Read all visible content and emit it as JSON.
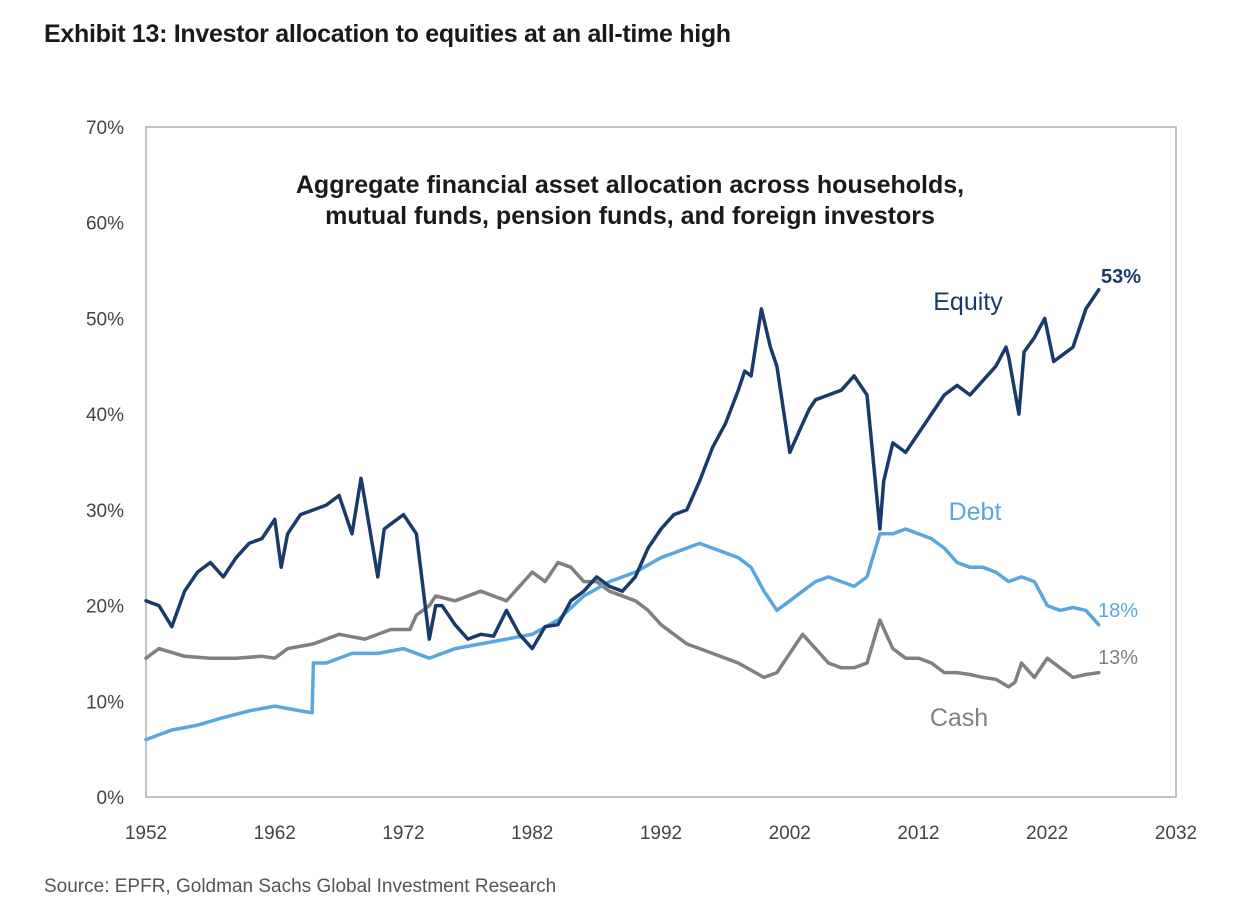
{
  "exhibit_title": "Exhibit 13: Investor allocation to equities at an all-time high",
  "source": "Source: EPFR, Goldman Sachs Global Investment Research",
  "colors": {
    "equity": "#1a3a6b",
    "debt": "#5aa7dd",
    "cash": "#808080",
    "axis": "#b0b0b0"
  },
  "chart_data": {
    "type": "line",
    "title": "Aggregate financial asset allocation across households, mutual funds, pension funds, and foreign investors",
    "title_lines": [
      "Aggregate financial asset allocation across households,",
      "mutual funds, pension funds, and foreign investors"
    ],
    "xlabel": "",
    "ylabel": "",
    "xlim": [
      1952,
      2032
    ],
    "ylim": [
      0,
      70
    ],
    "x_ticks": [
      1952,
      1962,
      1972,
      1982,
      1992,
      2002,
      2012,
      2022,
      2032
    ],
    "x_tick_labels": [
      "1952",
      "1962",
      "1972",
      "1982",
      "1992",
      "2002",
      "2012",
      "2022",
      "2032"
    ],
    "y_ticks": [
      0,
      10,
      20,
      30,
      40,
      50,
      60,
      70
    ],
    "y_tick_labels": [
      "0%",
      "10%",
      "20%",
      "30%",
      "40%",
      "50%",
      "60%",
      "70%"
    ],
    "grid": false,
    "series": [
      {
        "name": "Equity",
        "label": "Equity",
        "end_label": "53%",
        "color": "#1a3a6b",
        "x": [
          1952,
          1953,
          1954,
          1955,
          1956,
          1957,
          1958,
          1959,
          1960,
          1961,
          1962,
          1962.5,
          1963,
          1964,
          1965,
          1966,
          1967,
          1968,
          1968.7,
          1969,
          1970,
          1970.5,
          1971,
          1972,
          1973,
          1974,
          1974.5,
          1975,
          1976,
          1977,
          1978,
          1979,
          1980,
          1981,
          1982,
          1983,
          1984,
          1985,
          1986,
          1987,
          1988,
          1989,
          1990,
          1991,
          1992,
          1993,
          1994,
          1995,
          1996,
          1997,
          1998,
          1998.5,
          1999,
          1999.8,
          2000.5,
          2001,
          2002,
          2003,
          2003.5,
          2004,
          2005,
          2006,
          2007,
          2008,
          2009,
          2009.3,
          2010,
          2011,
          2012,
          2013,
          2014,
          2015,
          2016,
          2017,
          2018,
          2018.8,
          2019,
          2019.8,
          2020.2,
          2021,
          2021.8,
          2022.5,
          2023,
          2024,
          2025,
          2026
        ],
        "values": [
          20.5,
          20,
          17.8,
          21.5,
          23.5,
          24.5,
          23,
          25,
          26.5,
          27,
          29,
          24,
          27.5,
          29.5,
          30,
          30.5,
          31.5,
          27.5,
          33.3,
          31,
          23,
          28,
          28.5,
          29.5,
          27.5,
          16.5,
          20,
          20,
          18,
          16.5,
          17,
          16.8,
          19.5,
          17,
          15.5,
          17.8,
          18,
          20.5,
          21.5,
          23,
          22,
          21.5,
          23,
          26,
          28,
          29.5,
          30,
          33,
          36.5,
          39,
          42.5,
          44.5,
          44,
          51,
          47,
          45,
          36,
          39,
          40.5,
          41.5,
          42,
          42.5,
          44,
          42,
          28,
          33,
          37,
          36,
          38,
          40,
          42,
          43,
          42,
          43.5,
          45,
          47,
          46,
          40,
          46.5,
          48,
          50,
          45.5,
          46,
          47,
          51,
          53
        ]
      },
      {
        "name": "Debt",
        "label": "Debt",
        "end_label": "18%",
        "color": "#5aa7dd",
        "x": [
          1952,
          1954,
          1956,
          1958,
          1960,
          1962,
          1964,
          1964.9,
          1965,
          1966,
          1968,
          1970,
          1972,
          1974,
          1976,
          1978,
          1980,
          1982,
          1984,
          1986,
          1988,
          1990,
          1992,
          1994,
          1995,
          1996,
          1998,
          1999,
          2000,
          2001,
          2002,
          2003,
          2004,
          2005,
          2006,
          2007,
          2008,
          2009,
          2010,
          2011,
          2012,
          2013,
          2014,
          2015,
          2016,
          2017,
          2018,
          2019,
          2020,
          2021,
          2022,
          2023,
          2024,
          2025,
          2026
        ],
        "values": [
          6,
          7,
          7.5,
          8.3,
          9,
          9.5,
          9,
          8.8,
          14,
          14,
          15,
          15,
          15.5,
          14.5,
          15.5,
          16,
          16.5,
          17,
          18.5,
          21,
          22.5,
          23.5,
          25,
          26,
          26.5,
          26,
          25,
          24,
          21.5,
          19.5,
          20.5,
          21.5,
          22.5,
          23,
          22.5,
          22,
          23,
          27.5,
          27.5,
          28,
          27.5,
          27,
          26,
          24.5,
          24,
          24,
          23.5,
          22.5,
          23,
          22.5,
          20,
          19.5,
          19.8,
          19.5,
          18
        ]
      },
      {
        "name": "Cash",
        "label": "Cash",
        "end_label": "13%",
        "color": "#808080",
        "x": [
          1952,
          1953,
          1955,
          1957,
          1959,
          1961,
          1962,
          1963,
          1965,
          1967,
          1969,
          1971,
          1972.5,
          1973,
          1974,
          1974.5,
          1976,
          1978,
          1979,
          1980,
          1981,
          1982,
          1983,
          1984,
          1985,
          1986,
          1987,
          1988,
          1990,
          1991,
          1992,
          1994,
          1996,
          1998,
          2000,
          2001,
          2002,
          2003,
          2004,
          2005,
          2006,
          2007,
          2008,
          2009,
          2009.5,
          2010,
          2011,
          2012,
          2013,
          2014,
          2015,
          2016,
          2017,
          2018,
          2019,
          2019.5,
          2020,
          2021,
          2022,
          2023,
          2024,
          2025,
          2026
        ],
        "values": [
          14.5,
          15.5,
          14.7,
          14.5,
          14.5,
          14.7,
          14.5,
          15.5,
          16,
          17,
          16.5,
          17.5,
          17.5,
          19,
          20,
          21,
          20.5,
          21.5,
          21,
          20.5,
          22,
          23.5,
          22.5,
          24.5,
          24,
          22.5,
          22.5,
          21.5,
          20.5,
          19.5,
          18,
          16,
          15,
          14,
          12.5,
          13,
          15,
          17,
          15.5,
          14,
          13.5,
          13.5,
          14,
          18.5,
          17,
          15.5,
          14.5,
          14.5,
          14,
          13,
          13,
          12.8,
          12.5,
          12.3,
          11.5,
          12,
          14,
          12.5,
          14.5,
          13.5,
          12.5,
          12.8,
          13
        ]
      }
    ]
  }
}
